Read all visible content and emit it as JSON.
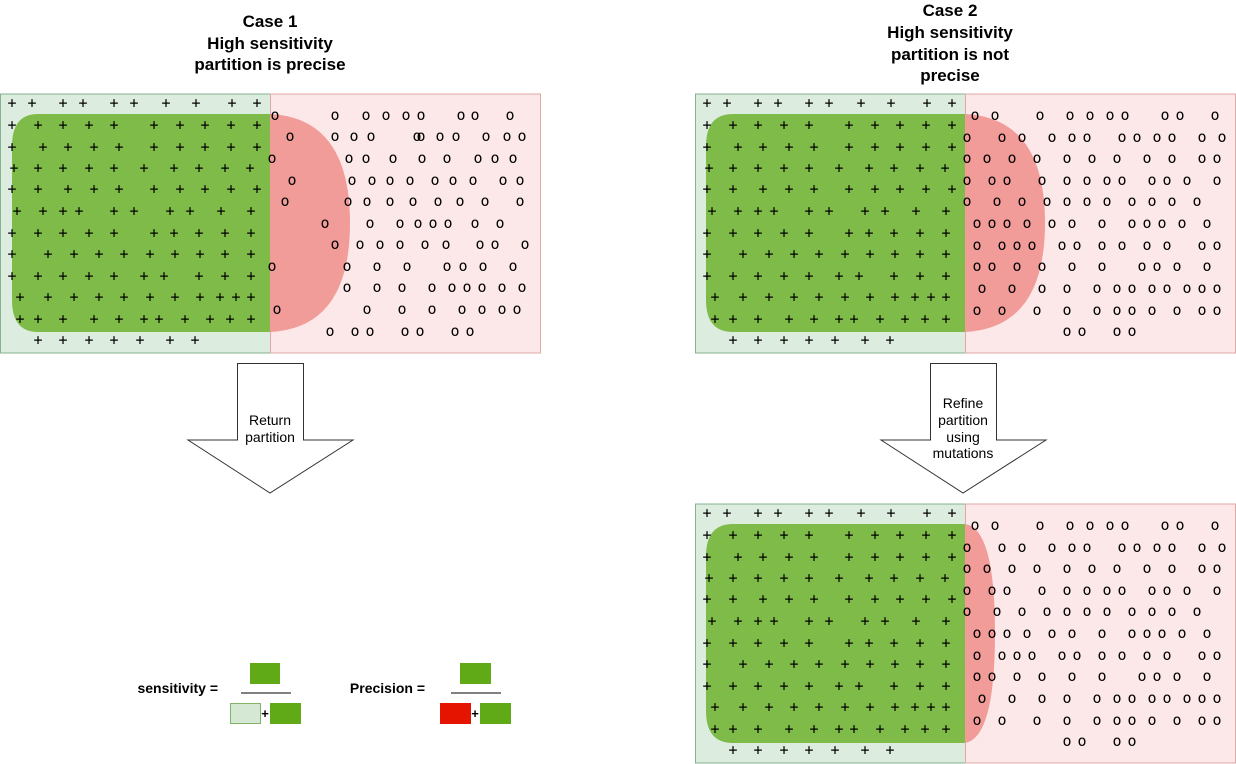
{
  "case1": {
    "title_lines": [
      "Case 1",
      "High sensitivity",
      "partition is precise"
    ],
    "arrow_label_lines": [
      "Return",
      "partition"
    ]
  },
  "case2": {
    "title_lines": [
      "Case 2",
      "High sensitivity",
      "partition is not",
      "precise"
    ],
    "arrow_label_lines": [
      "Refine",
      "partition",
      "using",
      "mutations"
    ]
  },
  "formulas": {
    "sensitivity_label": "sensitivity =",
    "precision_label": "Precision =",
    "plus_symbol": "+"
  },
  "symbols": {
    "positive": "+",
    "negative": "o"
  },
  "colors": {
    "left_region_fill": "#dcede0",
    "left_region_stroke": "#82b38e",
    "right_region_fill": "#fce8e8",
    "right_region_stroke": "#e0a8a8",
    "partition_green": "#60a917",
    "misclassified_red": "#f19c99",
    "formula_red": "#e51400",
    "formula_light_green": "#d5e8d4"
  }
}
